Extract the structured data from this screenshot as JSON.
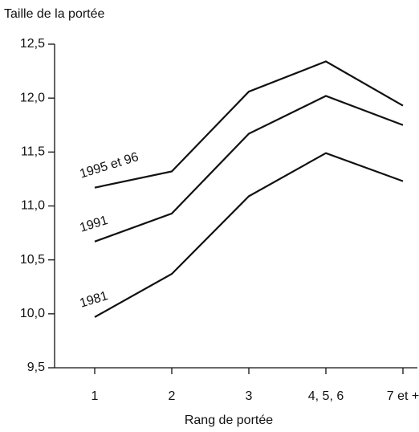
{
  "chart_data": {
    "type": "line",
    "title": "Taille de la portée",
    "x_label": "Rang de portée",
    "categories": [
      "1",
      "2",
      "3",
      "4, 5, 6",
      "7 et +"
    ],
    "series": [
      {
        "name": "1995 et 96",
        "color": "#111111",
        "values": [
          11.17,
          11.32,
          12.06,
          12.34,
          11.93
        ]
      },
      {
        "name": "1991",
        "color": "#111111",
        "values": [
          10.67,
          10.93,
          11.67,
          12.02,
          11.75
        ]
      },
      {
        "name": "1981",
        "color": "#111111",
        "values": [
          9.97,
          10.37,
          11.09,
          11.49,
          11.23
        ]
      }
    ],
    "ylim": [
      9.5,
      12.5
    ],
    "yticks": [
      {
        "value": 9.5,
        "label": "9,5"
      },
      {
        "value": 10.0,
        "label": "10,0"
      },
      {
        "value": 10.5,
        "label": "10,5"
      },
      {
        "value": 11.0,
        "label": "11,0"
      },
      {
        "value": 11.5,
        "label": "11,5"
      },
      {
        "value": 12.0,
        "label": "12,0"
      },
      {
        "value": 12.5,
        "label": "12,5"
      }
    ]
  }
}
